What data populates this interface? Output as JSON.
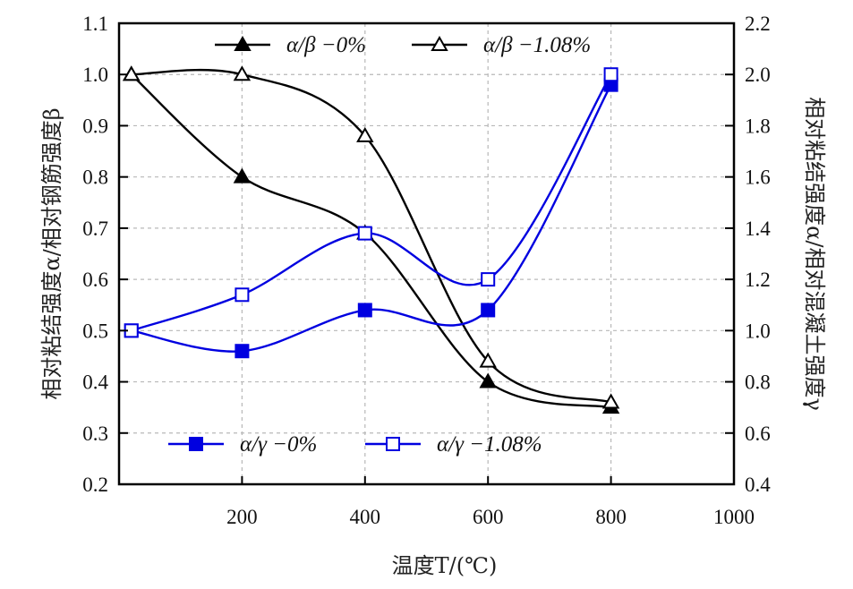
{
  "chart_data": {
    "type": "line",
    "title": "",
    "xlabel": "温度T/(℃)",
    "ylabel_left": "相对粘结强度α/相对钢筋强度β",
    "ylabel_right": "相对粘结强度α/相对混凝土强度γ",
    "xlim": [
      0,
      1000
    ],
    "ylim_left": [
      0.2,
      1.1
    ],
    "ylim_right": [
      0.4,
      2.2
    ],
    "x_ticks": [
      "200",
      "400",
      "600",
      "800",
      "1000"
    ],
    "x_tick_values": [
      200,
      400,
      600,
      800,
      1000
    ],
    "y_left_ticks": [
      "1.1",
      "1.0",
      "0.9",
      "0.8",
      "0.7",
      "0.6",
      "0.5",
      "0.4",
      "0.3",
      "0.2"
    ],
    "y_left_tick_values": [
      1.1,
      1.0,
      0.9,
      0.8,
      0.7,
      0.6,
      0.5,
      0.4,
      0.3,
      0.2
    ],
    "y_right_ticks": [
      "2.2",
      "2.0",
      "1.8",
      "1.6",
      "1.4",
      "1.2",
      "1.0",
      "0.8",
      "0.6",
      "0.4"
    ],
    "y_right_tick_values": [
      2.2,
      2.0,
      1.8,
      1.6,
      1.4,
      1.2,
      1.0,
      0.8,
      0.6,
      0.4
    ],
    "grid": true,
    "x": [
      20,
      200,
      400,
      600,
      800
    ],
    "series": [
      {
        "name": "α/β −0%",
        "axis": "left",
        "marker": "filled-triangle",
        "color": "#000000",
        "values": [
          1.0,
          0.8,
          0.69,
          0.4,
          0.35
        ]
      },
      {
        "name": "α/β −1.08%",
        "axis": "left",
        "marker": "open-triangle",
        "color": "#000000",
        "values": [
          1.0,
          1.0,
          0.88,
          0.44,
          0.36
        ]
      },
      {
        "name": "α/γ −0%",
        "axis": "right",
        "marker": "filled-square",
        "color": "#0000e0",
        "values": [
          1.0,
          0.92,
          1.08,
          1.08,
          1.96
        ]
      },
      {
        "name": "α/γ −1.08%",
        "axis": "right",
        "marker": "open-square",
        "color": "#0000e0",
        "values": [
          1.0,
          1.14,
          1.38,
          1.2,
          2.0
        ]
      }
    ],
    "legend": [
      {
        "position": "top",
        "entries": [
          "α/β −0%",
          "α/β −1.08%"
        ]
      },
      {
        "position": "bottom",
        "entries": [
          "α/γ −0%",
          "α/γ −1.08%"
        ]
      }
    ]
  }
}
